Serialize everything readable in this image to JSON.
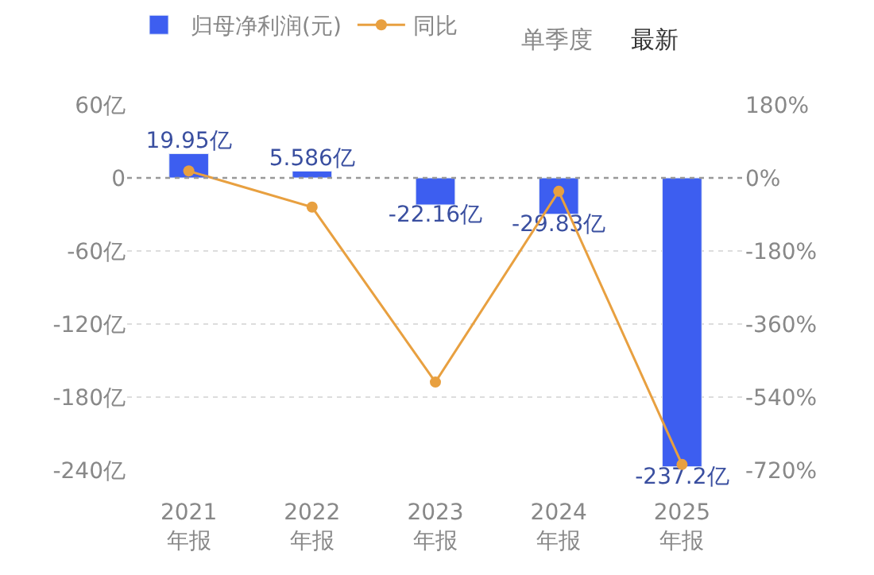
{
  "chart_data": {
    "type": "bar",
    "categories": [
      "2021\n年报",
      "2022\n年报",
      "2023\n年报",
      "2024\n年报",
      "2025\n年报"
    ],
    "series": [
      {
        "name": "归母净利润(元)",
        "color": "#3d5ef0",
        "values": [
          19.95,
          5.586,
          -22.16,
          -29.83,
          -237.2
        ],
        "value_labels": [
          "19.95亿",
          "5.586亿",
          "-22.16亿",
          "-29.83亿",
          "-237.2亿"
        ]
      },
      {
        "name": "同比",
        "type": "line",
        "axis": "y2",
        "color": "#e8a040",
        "values": [
          17,
          -72,
          -503,
          -33,
          -706
        ],
        "marker": "circle"
      }
    ],
    "ylim": [
      -240,
      60
    ],
    "ref_lines": [
      {
        "axis": "y",
        "value": 0,
        "color": "#999999",
        "line_style": "dotted"
      }
    ],
    "yticks": [
      {
        "value": 60,
        "label": "60亿"
      },
      0,
      {
        "value": -60,
        "label": "-60亿"
      },
      {
        "value": -120,
        "label": "-120亿"
      },
      {
        "value": -180,
        "label": "-180亿"
      },
      {
        "value": -240,
        "label": "-240亿"
      }
    ],
    "y2lim": [
      -720,
      180
    ],
    "y2ticks": [
      {
        "value": 180,
        "label": "180%"
      },
      {
        "value": 0,
        "label": "0%"
      },
      {
        "value": -180,
        "label": "-180%"
      },
      {
        "value": -360,
        "label": "-360%"
      },
      {
        "value": -540,
        "label": "-540%"
      },
      {
        "value": -720,
        "label": "-720%"
      }
    ],
    "grid": "y",
    "legend": "top left",
    "annotations": [
      "单季度",
      "最新"
    ]
  }
}
